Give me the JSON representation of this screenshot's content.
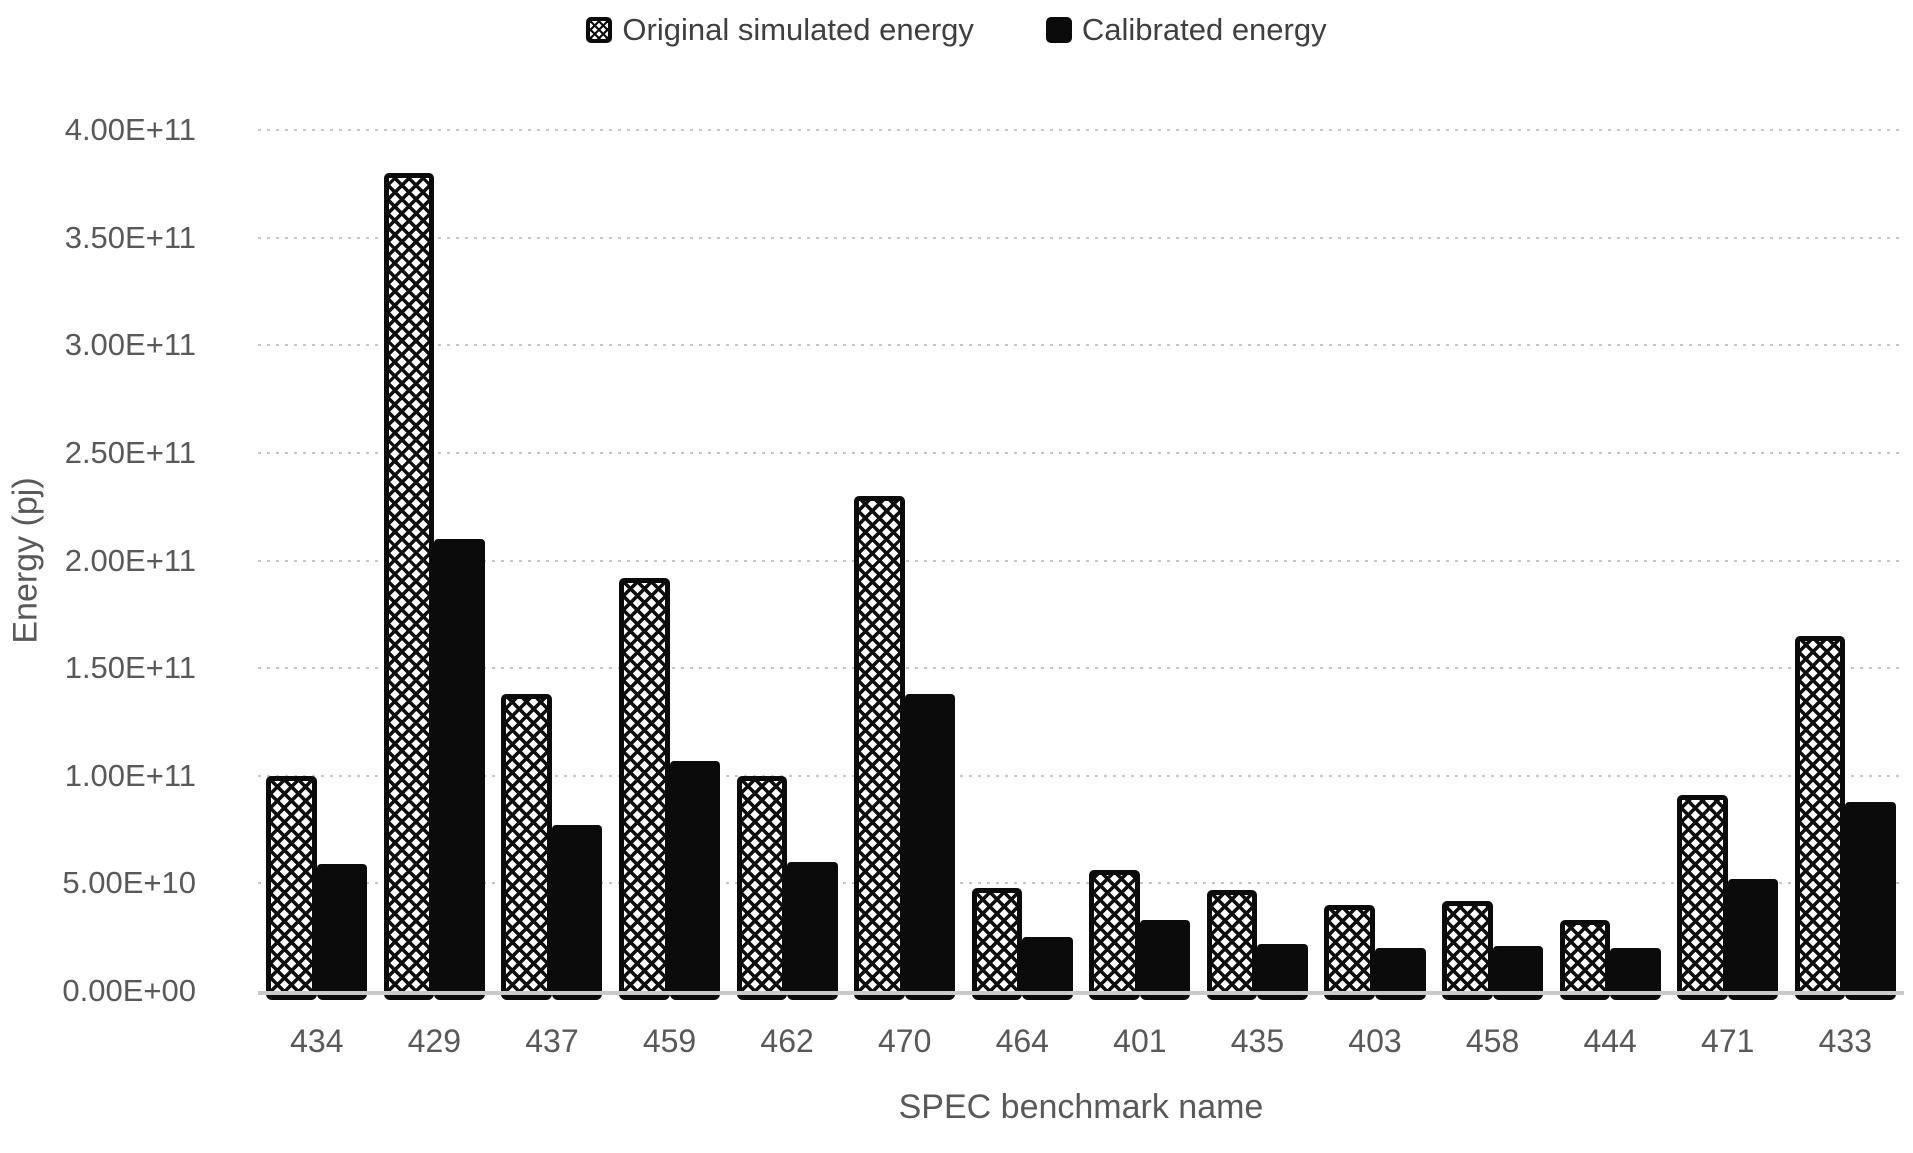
{
  "legend": {
    "original_label": "Original simulated energy",
    "calibrated_label": "Calibrated energy"
  },
  "colors": {
    "bar_black": "#0b0b0b",
    "axis_text": "#595959",
    "legend_text": "#3f3f3f",
    "gridline": "#c6c6c6",
    "axis_line": "#c9c9c9",
    "background": "#ffffff"
  },
  "chart_data": {
    "type": "bar",
    "title": "",
    "xlabel": "SPEC benchmark name",
    "ylabel": "Energy (pj)",
    "ylim": [
      0,
      400000000000.0
    ],
    "grid": "dotted horizontal gridlines every 5.0E+10",
    "legend_position": "top-center",
    "categories": [
      "434",
      "429",
      "437",
      "459",
      "462",
      "470",
      "464",
      "401",
      "435",
      "403",
      "458",
      "444",
      "471",
      "433"
    ],
    "y_tick_labels": [
      "4.00E+11",
      "3.50E+11",
      "3.00E+11",
      "2.50E+11",
      "2.00E+11",
      "1.50E+11",
      "1.00E+11",
      "5.00E+10",
      "0.00E+00"
    ],
    "series": [
      {
        "name": "Original simulated energy",
        "style": "white with black crosshatch pattern, black outline",
        "values": [
          100000000000.0,
          380000000000.0,
          138000000000.0,
          192000000000.0,
          100000000000.0,
          230000000000.0,
          48000000000.0,
          56000000000.0,
          47000000000.0,
          40000000000.0,
          42000000000.0,
          33000000000.0,
          91000000000.0,
          165000000000.0
        ]
      },
      {
        "name": "Calibrated energy",
        "style": "solid black",
        "values": [
          59000000000.0,
          210000000000.0,
          77000000000.0,
          107000000000.0,
          60000000000.0,
          138000000000.0,
          25000000000.0,
          33000000000.0,
          22000000000.0,
          20000000000.0,
          21000000000.0,
          20000000000.0,
          52000000000.0,
          88000000000.0
        ]
      }
    ]
  }
}
